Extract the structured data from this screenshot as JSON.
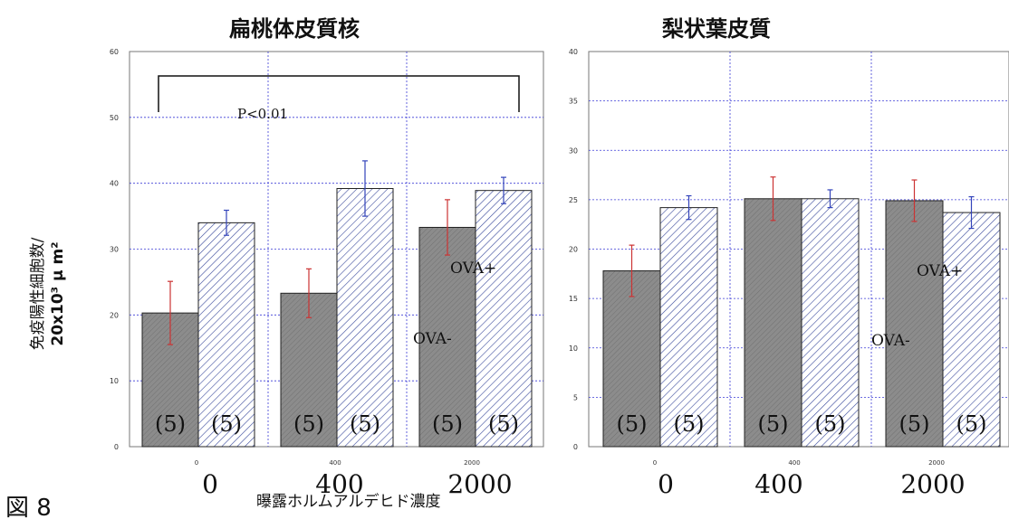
{
  "figure_label": "図 8",
  "ylabel_line1": "免疫陽性細胞数/",
  "ylabel_line2": "20x10³ μ m²",
  "xlabel": "曝露ホルムアルデヒド濃度",
  "colors": {
    "ova_minus_fill": "#8c8c8c",
    "ova_plus_hatch": "#3a4a9c",
    "ova_minus_error": "#cc3333",
    "ova_plus_error": "#3344bb",
    "grid": "#3b3bd6"
  },
  "chart_data": [
    {
      "type": "bar",
      "title": "扁桃体皮質核",
      "categories": [
        "0",
        "400",
        "2000"
      ],
      "category_big_labels": [
        "0",
        "400",
        "2000"
      ],
      "ylim": [
        0,
        60
      ],
      "yticks": [
        0,
        10,
        20,
        30,
        40,
        50,
        60
      ],
      "grid": true,
      "series": [
        {
          "name": "OVA-",
          "values": [
            20.3,
            23.3,
            33.3
          ],
          "errors": [
            4.8,
            3.7,
            4.2
          ]
        },
        {
          "name": "OVA+",
          "values": [
            34.0,
            39.2,
            38.9
          ],
          "errors": [
            1.9,
            4.2,
            2.0
          ]
        }
      ],
      "n_labels": [
        [
          "(5)",
          "(5)"
        ],
        [
          "(5)",
          "(5)"
        ],
        [
          "(5)",
          "(5)"
        ]
      ],
      "significance": {
        "from": "0",
        "to": "2000",
        "label": "P<0.01"
      }
    },
    {
      "type": "bar",
      "title": "梨状葉皮質",
      "categories": [
        "0",
        "400",
        "2000"
      ],
      "category_big_labels": [
        "0",
        "400",
        "2000"
      ],
      "ylim": [
        0,
        40
      ],
      "yticks": [
        0,
        5,
        10,
        15,
        20,
        25,
        30,
        35,
        40
      ],
      "grid": true,
      "series": [
        {
          "name": "OVA-",
          "values": [
            17.8,
            25.1,
            24.9
          ],
          "errors": [
            2.6,
            2.2,
            2.1
          ]
        },
        {
          "name": "OVA+",
          "values": [
            24.2,
            25.1,
            23.7
          ],
          "errors": [
            1.2,
            0.9,
            1.6
          ]
        }
      ],
      "n_labels": [
        [
          "(5)",
          "(5)"
        ],
        [
          "(5)",
          "(5)"
        ],
        [
          "(5)",
          "(5)"
        ]
      ]
    }
  ]
}
